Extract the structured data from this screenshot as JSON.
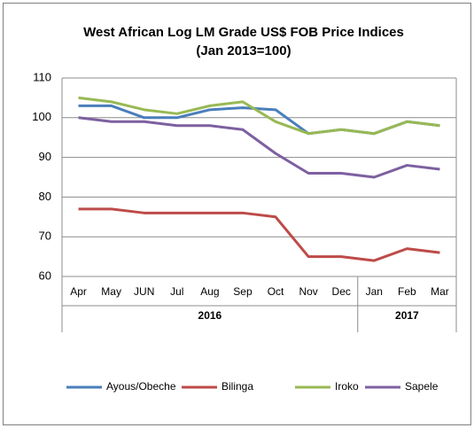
{
  "chart_data": {
    "type": "line",
    "title": "West African Log LM Grade US$ FOB Price Indices",
    "subtitle": "(Jan 2013=100)",
    "groups": [
      {
        "label": "2016",
        "categories": [
          "Apr",
          "May",
          "JUN",
          "Jul",
          "Aug",
          "Sep",
          "Oct",
          "Nov",
          "Dec"
        ]
      },
      {
        "label": "2017",
        "categories": [
          "Jan",
          "Feb",
          "Mar"
        ]
      }
    ],
    "series": [
      {
        "name": "Ayous/Obeche",
        "color": "#4a7ebb",
        "values": [
          103,
          103,
          100,
          100,
          102,
          102.5,
          102,
          96,
          97,
          96,
          99,
          98
        ]
      },
      {
        "name": "Bilinga",
        "color": "#be4b48",
        "values": [
          77,
          77,
          76,
          76,
          76,
          76,
          75,
          65,
          65,
          64,
          67,
          66
        ]
      },
      {
        "name": "Iroko",
        "color": "#98b954",
        "values": [
          105,
          104,
          102,
          101,
          103,
          104,
          99,
          96,
          97,
          96,
          99,
          98
        ]
      },
      {
        "name": "Sapele",
        "color": "#7d60a0",
        "values": [
          100,
          99,
          99,
          98,
          98,
          97,
          91,
          86,
          86,
          85,
          88,
          87
        ]
      }
    ],
    "ylim": [
      60,
      110
    ],
    "yticks": [
      60,
      70,
      80,
      90,
      100,
      110
    ],
    "grid": true,
    "legend": "bottom"
  }
}
